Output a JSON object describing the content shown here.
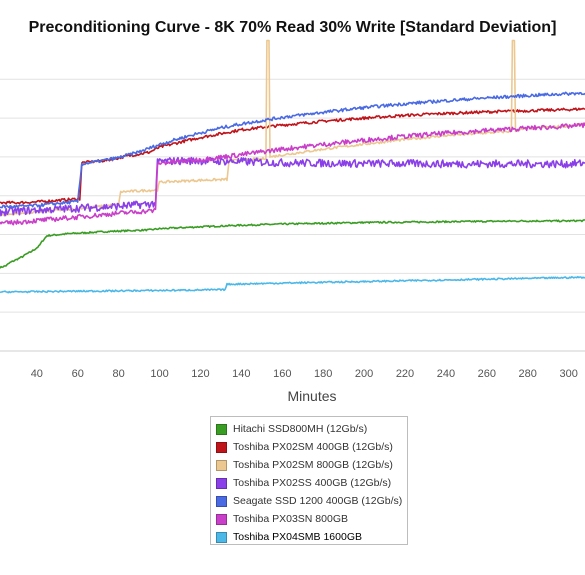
{
  "chart_data": {
    "type": "line",
    "title": "Preconditioning Curve - 8K 70% Read 30% Write [Standard Deviation]",
    "xlabel": "Minutes",
    "ylabel": "",
    "xlim": [
      22,
      308
    ],
    "ylim": [
      0,
      7.6
    ],
    "x_ticks": [
      40,
      60,
      80,
      100,
      120,
      140,
      160,
      180,
      200,
      220,
      240,
      260,
      280,
      300
    ],
    "x_tick_labels": [
      "40",
      "60",
      "80",
      "100",
      "120",
      "140",
      "160",
      "180",
      "200",
      "220",
      "240",
      "260",
      "280",
      "300"
    ],
    "y_gridlines": [
      1,
      2,
      3,
      4,
      5,
      6,
      7
    ],
    "grid": true,
    "legend_position": "bottom-center",
    "series": [
      {
        "name": "Hitachi SSD800MH (12Gb/s)",
        "color": "#3a9d23",
        "x": [
          22,
          25,
          27,
          29,
          31,
          33,
          35,
          37,
          39,
          41,
          43,
          45,
          55,
          65,
          75,
          85,
          95,
          100,
          120,
          140,
          160,
          180,
          200,
          220,
          240,
          260,
          280,
          300,
          308
        ],
        "y": [
          2.15,
          2.2,
          2.28,
          2.33,
          2.38,
          2.43,
          2.5,
          2.55,
          2.62,
          2.7,
          2.85,
          2.97,
          3.02,
          3.05,
          3.08,
          3.1,
          3.12,
          3.15,
          3.2,
          3.24,
          3.27,
          3.29,
          3.31,
          3.32,
          3.33,
          3.34,
          3.35,
          3.35,
          3.36
        ],
        "noise": 0.02
      },
      {
        "name": "Toshiba PX02SM 400GB (12Gb/s)",
        "color": "#c0141b",
        "x": [
          22,
          30,
          40,
          50,
          61,
          62,
          66,
          75,
          85,
          95,
          100,
          110,
          120,
          130,
          140,
          150,
          160,
          180,
          200,
          220,
          240,
          260,
          280,
          300,
          308
        ],
        "y": [
          3.82,
          3.82,
          3.84,
          3.88,
          3.92,
          4.85,
          4.87,
          4.92,
          5.03,
          5.12,
          5.25,
          5.38,
          5.5,
          5.6,
          5.7,
          5.76,
          5.82,
          5.92,
          6.0,
          6.07,
          6.12,
          6.16,
          6.19,
          6.22,
          6.24
        ],
        "noise": 0.035
      },
      {
        "name": "Toshiba PX02SM 800GB (12Gb/s)",
        "color": "#ecc890",
        "x": [
          22,
          40,
          60,
          80,
          81,
          99,
          100,
          120,
          133,
          134,
          150,
          152,
          152.5,
          153.5,
          154,
          160,
          180,
          200,
          220,
          240,
          260,
          272,
          272.5,
          273.5,
          274,
          280,
          300,
          308
        ],
        "y": [
          3.5,
          3.58,
          3.67,
          3.77,
          4.1,
          4.15,
          4.35,
          4.4,
          4.42,
          4.9,
          4.95,
          4.97,
          9,
          9,
          5.0,
          5.05,
          5.2,
          5.33,
          5.45,
          5.55,
          5.62,
          5.66,
          9,
          9,
          5.68,
          5.73,
          5.8,
          5.85
        ],
        "noise": 0.03
      },
      {
        "name": "Toshiba PX02SS 400GB (12Gb/s)",
        "color": "#8a3fe8",
        "x": [
          22,
          40,
          60,
          80,
          98,
          99,
          100,
          110,
          120,
          140,
          160,
          180,
          200,
          220,
          240,
          260,
          280,
          300,
          308
        ],
        "y": [
          3.58,
          3.63,
          3.68,
          3.73,
          3.8,
          4.86,
          4.88,
          4.9,
          4.9,
          4.88,
          4.85,
          4.84,
          4.83,
          4.83,
          4.82,
          4.82,
          4.82,
          4.82,
          4.84
        ],
        "noise": 0.1
      },
      {
        "name": "Seagate SSD 1200 400GB (12Gb/s)",
        "color": "#4a6ae3",
        "x": [
          22,
          30,
          40,
          50,
          60,
          62,
          66,
          80,
          90,
          100,
          110,
          120,
          130,
          140,
          160,
          180,
          200,
          220,
          240,
          260,
          280,
          300,
          308
        ],
        "y": [
          3.72,
          3.72,
          3.75,
          3.8,
          3.85,
          4.82,
          4.85,
          4.98,
          5.13,
          5.32,
          5.48,
          5.62,
          5.75,
          5.85,
          6.02,
          6.15,
          6.27,
          6.37,
          6.45,
          6.52,
          6.58,
          6.63,
          6.65
        ],
        "noise": 0.04
      },
      {
        "name": "Toshiba PX03SN 800GB",
        "color": "#c93fc9",
        "x": [
          22,
          40,
          60,
          80,
          98,
          99,
          100,
          120,
          140,
          160,
          180,
          200,
          220,
          240,
          260,
          280,
          300,
          308
        ],
        "y": [
          3.28,
          3.36,
          3.45,
          3.55,
          3.62,
          4.82,
          4.84,
          4.93,
          5.06,
          5.2,
          5.32,
          5.43,
          5.53,
          5.61,
          5.68,
          5.74,
          5.79,
          5.82
        ],
        "noise": 0.06
      },
      {
        "name": "Toshiba PX04SMB 1600GB",
        "color": "#4cb8e8",
        "x": [
          22,
          60,
          100,
          132,
          133,
          160,
          200,
          240,
          280,
          308
        ],
        "y": [
          1.52,
          1.54,
          1.56,
          1.58,
          1.72,
          1.75,
          1.79,
          1.83,
          1.87,
          1.9
        ],
        "noise": 0.02
      }
    ]
  }
}
